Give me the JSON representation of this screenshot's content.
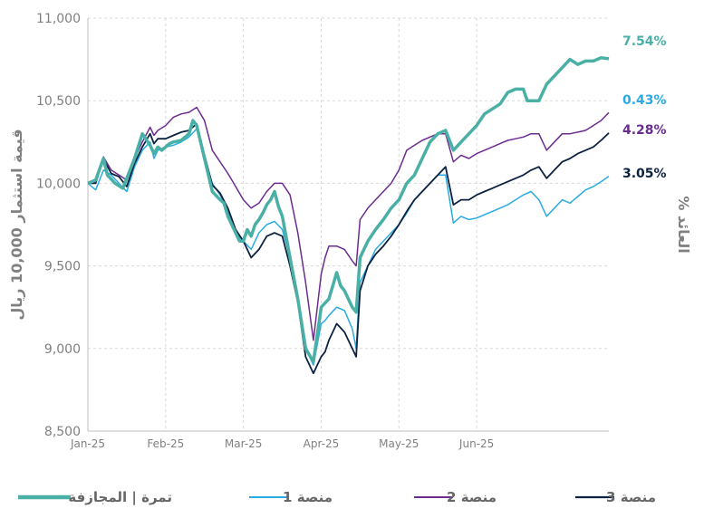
{
  "chart_data": {
    "type": "line",
    "title": "",
    "ylabel": "قيمة استثمار 10,000 ريال",
    "y2label": "% العائد",
    "ylim": [
      8500,
      11000
    ],
    "yticks": [
      8500,
      9000,
      9500,
      10000,
      10500,
      11000
    ],
    "ytick_labels": [
      "8,500",
      "9,000",
      "9,500",
      "10,000",
      "10,500",
      "11,000"
    ],
    "xlim": [
      0,
      6.7
    ],
    "xticks": [
      0,
      1,
      2,
      3,
      4,
      5
    ],
    "xtick_labels": [
      "Jan-25",
      "Feb-25",
      "Mar-25",
      "Apr-25",
      "May-25",
      "Jun-25"
    ],
    "x_unit": "months since Jan-25",
    "grid": true,
    "legend_position": "bottom",
    "series": [
      {
        "name": "تمرة | المجازفة",
        "color": "#4ab0a6",
        "end_label": "7.54%",
        "x": [
          0,
          0.1,
          0.2,
          0.25,
          0.35,
          0.45,
          0.5,
          0.6,
          0.7,
          0.8,
          0.85,
          0.9,
          0.95,
          1.0,
          1.05,
          1.1,
          1.2,
          1.3,
          1.35,
          1.4,
          1.5,
          1.6,
          1.7,
          1.75,
          1.8,
          1.85,
          1.9,
          1.95,
          2.0,
          2.05,
          2.1,
          2.15,
          2.2,
          2.25,
          2.3,
          2.35,
          2.4,
          2.45,
          2.5,
          2.6,
          2.7,
          2.8,
          2.9,
          3.0,
          3.1,
          3.15,
          3.2,
          3.25,
          3.3,
          3.4,
          3.45,
          3.5,
          3.6,
          3.7,
          3.8,
          3.9,
          4.0,
          4.05,
          4.1,
          4.2,
          4.3,
          4.4,
          4.5,
          4.6,
          4.7,
          4.8,
          4.9,
          5.0,
          5.1,
          5.2,
          5.3,
          5.4,
          5.5,
          5.6,
          5.65,
          5.7,
          5.8,
          5.9,
          6.0,
          6.1,
          6.2,
          6.3,
          6.4,
          6.5,
          6.55,
          6.6,
          6.7
        ],
        "values": [
          10000,
          10020,
          10150,
          10050,
          10000,
          9970,
          10030,
          10150,
          10300,
          10230,
          10180,
          10220,
          10200,
          10220,
          10240,
          10250,
          10260,
          10300,
          10380,
          10350,
          10150,
          9950,
          9900,
          9880,
          9800,
          9750,
          9700,
          9650,
          9650,
          9720,
          9680,
          9750,
          9780,
          9820,
          9870,
          9900,
          9950,
          9860,
          9800,
          9550,
          9300,
          9000,
          8920,
          9250,
          9300,
          9380,
          9460,
          9380,
          9350,
          9250,
          9220,
          9550,
          9650,
          9720,
          9780,
          9850,
          9900,
          9950,
          10000,
          10050,
          10150,
          10250,
          10300,
          10320,
          10200,
          10250,
          10300,
          10350,
          10420,
          10450,
          10480,
          10550,
          10570,
          10570,
          10500,
          10500,
          10500,
          10600,
          10650,
          10700,
          10750,
          10720,
          10740,
          10740,
          10750,
          10760,
          10754
        ]
      },
      {
        "name": "منصة 1",
        "color": "#29abe2",
        "end_label": "0.43%",
        "x": [
          0,
          0.1,
          0.2,
          0.3,
          0.4,
          0.5,
          0.6,
          0.7,
          0.8,
          0.85,
          0.9,
          1.0,
          1.1,
          1.2,
          1.3,
          1.4,
          1.5,
          1.6,
          1.7,
          1.8,
          1.9,
          2.0,
          2.1,
          2.2,
          2.3,
          2.4,
          2.5,
          2.6,
          2.7,
          2.8,
          2.9,
          3.0,
          3.05,
          3.1,
          3.2,
          3.3,
          3.4,
          3.45,
          3.5,
          3.6,
          3.7,
          3.8,
          3.9,
          4.0,
          4.1,
          4.2,
          4.3,
          4.4,
          4.5,
          4.6,
          4.7,
          4.8,
          4.9,
          5.0,
          5.1,
          5.2,
          5.3,
          5.4,
          5.5,
          5.6,
          5.7,
          5.8,
          5.9,
          6.0,
          6.1,
          6.2,
          6.3,
          6.4,
          6.5,
          6.6,
          6.7
        ],
        "values": [
          10000,
          9960,
          10080,
          10050,
          10000,
          9950,
          10100,
          10200,
          10250,
          10150,
          10200,
          10220,
          10230,
          10250,
          10280,
          10330,
          10150,
          10000,
          9930,
          9830,
          9700,
          9650,
          9600,
          9700,
          9750,
          9770,
          9720,
          9550,
          9300,
          9000,
          8900,
          9150,
          9170,
          9200,
          9250,
          9230,
          9120,
          9000,
          9400,
          9500,
          9600,
          9650,
          9700,
          9750,
          9820,
          9900,
          9950,
          10000,
          10050,
          10050,
          9760,
          9800,
          9780,
          9790,
          9810,
          9830,
          9850,
          9870,
          9900,
          9930,
          9950,
          9900,
          9800,
          9850,
          9900,
          9880,
          9920,
          9960,
          9980,
          10010,
          10043
        ]
      },
      {
        "name": "منصة 2",
        "color": "#6b2c8f",
        "end_label": "4.28%",
        "x": [
          0,
          0.1,
          0.2,
          0.3,
          0.4,
          0.5,
          0.6,
          0.7,
          0.8,
          0.85,
          0.9,
          1.0,
          1.1,
          1.2,
          1.3,
          1.4,
          1.5,
          1.6,
          1.7,
          1.8,
          1.9,
          2.0,
          2.1,
          2.2,
          2.3,
          2.4,
          2.5,
          2.6,
          2.7,
          2.8,
          2.9,
          3.0,
          3.05,
          3.1,
          3.2,
          3.3,
          3.4,
          3.45,
          3.5,
          3.6,
          3.7,
          3.8,
          3.9,
          4.0,
          4.1,
          4.2,
          4.3,
          4.4,
          4.5,
          4.6,
          4.7,
          4.8,
          4.9,
          5.0,
          5.1,
          5.2,
          5.3,
          5.4,
          5.5,
          5.6,
          5.7,
          5.8,
          5.9,
          6.0,
          6.1,
          6.2,
          6.3,
          6.4,
          6.5,
          6.6,
          6.7
        ],
        "values": [
          10000,
          10010,
          10160,
          10080,
          10050,
          10020,
          10150,
          10250,
          10340,
          10290,
          10320,
          10350,
          10400,
          10420,
          10430,
          10460,
          10380,
          10200,
          10130,
          10060,
          9980,
          9900,
          9850,
          9880,
          9950,
          10000,
          10000,
          9930,
          9700,
          9400,
          9050,
          9450,
          9550,
          9620,
          9620,
          9600,
          9530,
          9500,
          9780,
          9850,
          9900,
          9950,
          10000,
          10080,
          10200,
          10230,
          10260,
          10280,
          10300,
          10300,
          10130,
          10170,
          10150,
          10180,
          10200,
          10220,
          10240,
          10260,
          10270,
          10280,
          10300,
          10300,
          10200,
          10250,
          10300,
          10300,
          10310,
          10320,
          10350,
          10380,
          10428
        ]
      },
      {
        "name": "منصة 3",
        "color": "#0d2240",
        "end_label": "3.05%",
        "x": [
          0,
          0.1,
          0.2,
          0.3,
          0.4,
          0.5,
          0.6,
          0.7,
          0.8,
          0.85,
          0.9,
          1.0,
          1.1,
          1.2,
          1.3,
          1.4,
          1.5,
          1.6,
          1.7,
          1.8,
          1.9,
          2.0,
          2.1,
          2.2,
          2.3,
          2.4,
          2.5,
          2.6,
          2.7,
          2.8,
          2.9,
          3.0,
          3.05,
          3.1,
          3.2,
          3.3,
          3.4,
          3.45,
          3.5,
          3.6,
          3.7,
          3.8,
          3.9,
          4.0,
          4.1,
          4.2,
          4.3,
          4.4,
          4.5,
          4.6,
          4.7,
          4.8,
          4.9,
          5.0,
          5.1,
          5.2,
          5.3,
          5.4,
          5.5,
          5.6,
          5.7,
          5.8,
          5.9,
          6.0,
          6.1,
          6.2,
          6.3,
          6.4,
          6.5,
          6.6,
          6.7
        ],
        "values": [
          10000,
          10000,
          10150,
          10060,
          10040,
          9980,
          10120,
          10220,
          10300,
          10240,
          10270,
          10270,
          10290,
          10310,
          10320,
          10360,
          10170,
          9990,
          9940,
          9850,
          9720,
          9650,
          9550,
          9600,
          9680,
          9700,
          9680,
          9500,
          9280,
          8950,
          8850,
          8950,
          8980,
          9050,
          9150,
          9100,
          9000,
          8950,
          9350,
          9500,
          9570,
          9620,
          9680,
          9750,
          9830,
          9900,
          9950,
          10000,
          10050,
          10100,
          9870,
          9900,
          9900,
          9930,
          9950,
          9970,
          9990,
          10010,
          10030,
          10050,
          10080,
          10100,
          10030,
          10080,
          10130,
          10150,
          10180,
          10200,
          10220,
          10260,
          10305
        ]
      }
    ]
  }
}
